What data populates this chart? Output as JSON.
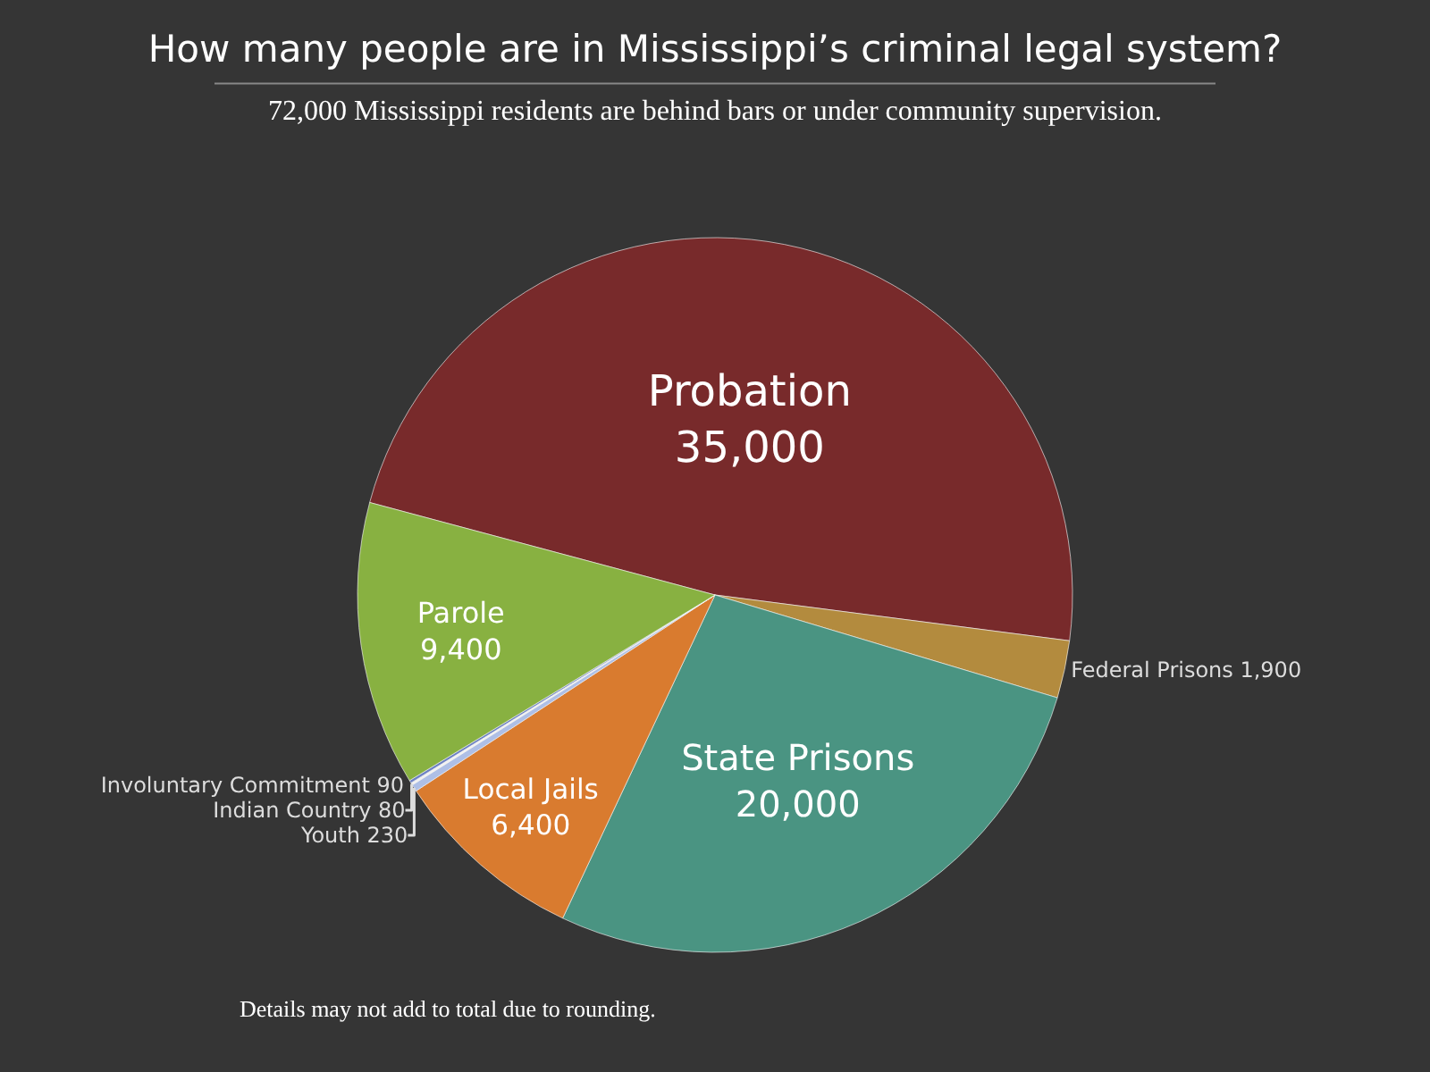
{
  "chart_data": {
    "type": "pie",
    "title": "How many people are in Mississippi’s criminal legal system?",
    "subtitle": "72,000 Mississippi residents are behind bars or under community supervision.",
    "categories": [
      "Probation",
      "Federal Prisons",
      "State Prisons",
      "Local Jails",
      "Youth",
      "Indian Country",
      "Involuntary Commitment",
      "Parole"
    ],
    "values": [
      35000,
      1900,
      20000,
      6400,
      230,
      80,
      90,
      9400
    ],
    "colors": [
      "#782a2b",
      "#b38b3e",
      "#4a9482",
      "#d97b2f",
      "#aebfe6",
      "#f2f2f2",
      "#6b80c4",
      "#88b141"
    ],
    "value_labels": [
      "35,000",
      "1,900",
      "20,000",
      "6,400",
      "230",
      "80",
      "90",
      "9,400"
    ],
    "legend": false,
    "annotations": [
      "Details may not add to total due to rounding."
    ]
  }
}
